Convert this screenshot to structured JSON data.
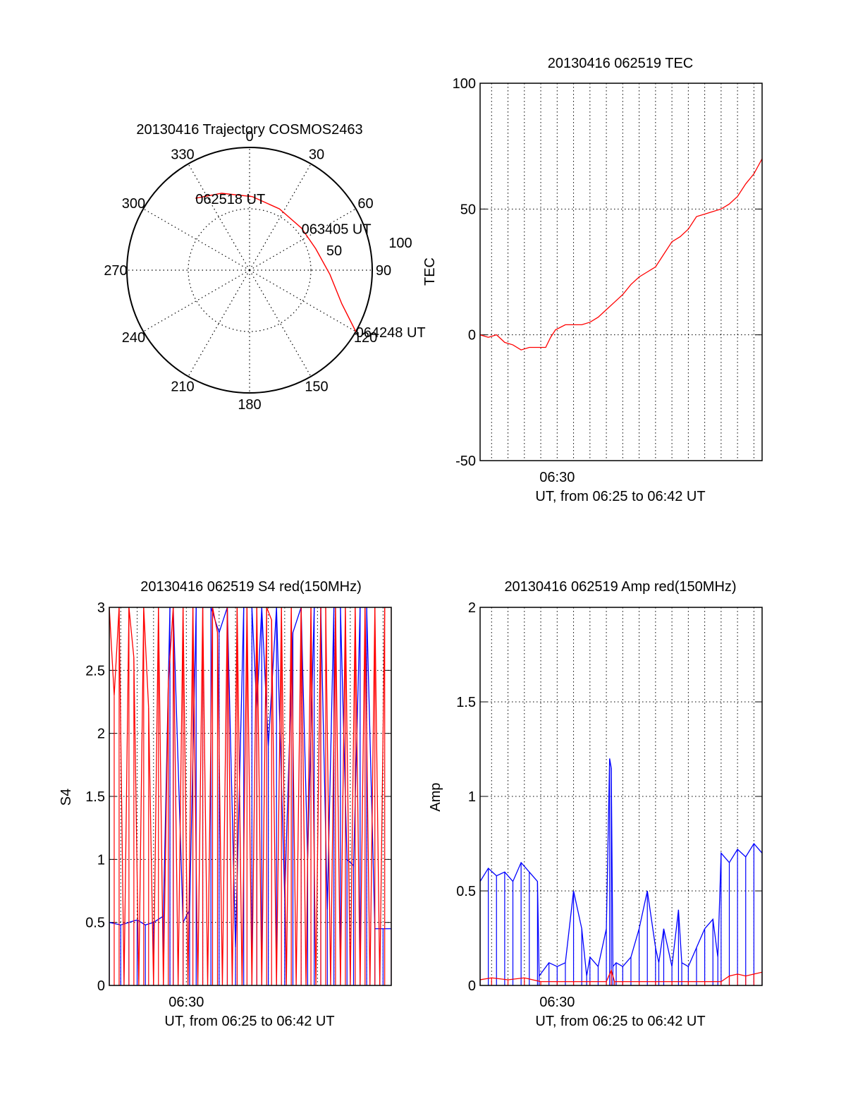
{
  "colors": {
    "primary": "#ff0000",
    "secondary": "#0000ff",
    "grid": "#000000"
  },
  "chart_data": [
    {
      "type": "polar",
      "title": "20130416 Trajectory COSMOS2463",
      "angle_labels": [
        "0",
        "30",
        "60",
        "90",
        "120",
        "150",
        "180",
        "210",
        "240",
        "270",
        "300",
        "330"
      ],
      "radial_labels": [
        "50",
        "100"
      ],
      "radial_max": 90,
      "trajectory": [
        {
          "az": 323,
          "el": 24
        },
        {
          "az": 340,
          "el": 30
        },
        {
          "az": 2,
          "el": 36
        },
        {
          "az": 26,
          "el": 40
        },
        {
          "az": 51,
          "el": 41
        },
        {
          "az": 72,
          "el": 39
        },
        {
          "az": 93,
          "el": 31
        },
        {
          "az": 110,
          "el": 18
        },
        {
          "az": 120,
          "el": 0
        }
      ],
      "annotations": [
        {
          "text": "062518 UT",
          "az": 323,
          "el": 24
        },
        {
          "text": "063405 UT",
          "az": 51,
          "el": 41
        },
        {
          "text": "064248 UT",
          "az": 120,
          "el": 0
        }
      ]
    },
    {
      "type": "line",
      "title": "20130416 062519 TEC",
      "ylabel": "TEC",
      "xlabel": "UT, from 06:25 to 06:42 UT",
      "xtick_labels": [
        "06:30"
      ],
      "yticks": [
        -50,
        0,
        50,
        100
      ],
      "ylim": [
        -50,
        100
      ],
      "xlim_min": [
        25.3,
        42.5
      ],
      "grid": true,
      "series": [
        {
          "color": "#ff0000",
          "x": [
            25.3,
            25.8,
            26.3,
            26.8,
            27.3,
            27.8,
            28.3,
            28.8,
            29.3,
            29.6,
            29.9,
            30.5,
            31.0,
            31.5,
            32.0,
            32.5,
            33.0,
            33.5,
            34.0,
            34.5,
            35.0,
            35.5,
            36.0,
            36.5,
            37.0,
            37.5,
            38.0,
            38.5,
            39.0,
            39.5,
            40.0,
            40.5,
            41.0,
            41.5,
            42.0,
            42.5
          ],
          "y": [
            0,
            -1,
            0,
            -3,
            -4,
            -6,
            -5,
            -5,
            -5,
            -1,
            2,
            4,
            4,
            4,
            5,
            7,
            10,
            13,
            16,
            20,
            23,
            25,
            27,
            32,
            37,
            39,
            42,
            47,
            48,
            49,
            50,
            52,
            55,
            60,
            64,
            70
          ]
        }
      ]
    },
    {
      "type": "line",
      "title": "20130416 062519 S4 red(150MHz)",
      "ylabel": "S4",
      "xlabel": "UT, from 06:25 to 06:42 UT",
      "xtick_labels": [
        "06:30"
      ],
      "yticks": [
        0,
        0.5,
        1,
        1.5,
        2,
        2.5,
        3
      ],
      "ytick_labels": [
        "0",
        "0.5",
        "1",
        "1.5",
        "2",
        "2.5",
        "3"
      ],
      "ylim": [
        0,
        3
      ],
      "xlim_min": [
        25.3,
        42.5
      ],
      "grid": true,
      "series": [
        {
          "color": "#0000ff",
          "x": [
            25.3,
            26.0,
            26.5,
            27.0,
            27.5,
            28.0,
            28.6,
            29.0,
            29.2,
            29.8,
            30.2,
            30.6,
            31.0,
            31.5,
            32.0,
            32.5,
            33.0,
            33.5,
            34.0,
            34.3,
            34.6,
            35.0,
            35.5,
            36.0,
            36.5,
            37.0,
            37.4,
            37.8,
            38.2,
            38.6,
            39.0,
            39.4,
            39.8,
            40.2,
            40.6,
            41.0,
            41.5,
            42.0,
            42.5
          ],
          "y": [
            0.5,
            0.48,
            0.5,
            0.52,
            0.48,
            0.5,
            0.55,
            3,
            3,
            0.5,
            0.6,
            3,
            3,
            3,
            2.8,
            3,
            0.3,
            3,
            3,
            2.2,
            3,
            1.9,
            3,
            0.7,
            2.8,
            3,
            1.0,
            3,
            3,
            0.6,
            3,
            3,
            1.0,
            0.95,
            3,
            3,
            0.45,
            0.45,
            0.45
          ]
        },
        {
          "color": "#ff0000",
          "x": [
            25.3,
            25.6,
            25.9,
            26.2,
            26.5,
            26.8,
            27.1,
            27.4,
            27.7,
            28.0,
            28.3,
            28.6,
            28.9,
            29.2,
            29.5,
            29.8,
            30.1,
            30.4,
            30.7,
            31.0,
            31.3,
            31.6,
            31.9,
            32.2,
            32.5,
            32.8,
            33.1,
            33.4,
            33.7,
            34.0,
            34.3,
            34.6,
            34.9,
            35.2,
            35.5,
            35.8,
            36.1,
            36.4,
            36.7,
            37.0,
            37.3,
            37.6,
            37.9,
            38.2,
            38.5,
            38.8,
            39.1,
            39.4,
            39.7,
            40.0,
            40.3,
            40.6,
            40.9,
            41.2,
            41.5,
            41.8,
            42.1,
            42.5
          ],
          "y": [
            3,
            2.3,
            3,
            0,
            3,
            2.6,
            0,
            3,
            2.2,
            0,
            3,
            0,
            2.4,
            3,
            0,
            3,
            0,
            3,
            0,
            3,
            0,
            3,
            2.8,
            0,
            3,
            0,
            3,
            0,
            3,
            0,
            3,
            0,
            3,
            2.9,
            0,
            3,
            0,
            3,
            0,
            3,
            0,
            3,
            0,
            3,
            3,
            0,
            3,
            0,
            3,
            0,
            3,
            0,
            3,
            0,
            3,
            0,
            3,
            3
          ]
        }
      ]
    },
    {
      "type": "line",
      "title": "20130416 062519 Amp red(150MHz)",
      "ylabel": "Amp",
      "xlabel": "UT, from 06:25 to 06:42 UT",
      "xtick_labels": [
        "06:30"
      ],
      "yticks": [
        0,
        0.5,
        1,
        1.5,
        2
      ],
      "ytick_labels": [
        "0",
        "0.5",
        "1",
        "1.5",
        "2"
      ],
      "ylim": [
        0,
        2
      ],
      "xlim_min": [
        25.3,
        42.5
      ],
      "grid": true,
      "series": [
        {
          "color": "#0000ff",
          "x": [
            25.3,
            25.8,
            26.3,
            26.8,
            27.3,
            27.8,
            28.3,
            28.8,
            28.9,
            29.5,
            30.0,
            30.5,
            31.0,
            31.5,
            31.8,
            32.0,
            32.5,
            33.0,
            33.2,
            33.3,
            33.4,
            33.6,
            34.0,
            34.5,
            35.0,
            35.5,
            36.0,
            36.2,
            36.5,
            37.0,
            37.4,
            37.6,
            38.0,
            38.5,
            39.0,
            39.5,
            39.8,
            40.0,
            40.5,
            41.0,
            41.5,
            42.0,
            42.5
          ],
          "y": [
            0.55,
            0.62,
            0.58,
            0.6,
            0.55,
            0.65,
            0.6,
            0.55,
            0.05,
            0.12,
            0.1,
            0.12,
            0.5,
            0.3,
            0.05,
            0.15,
            0.1,
            0.3,
            1.2,
            1.15,
            0.1,
            0.12,
            0.1,
            0.15,
            0.3,
            0.5,
            0.2,
            0.12,
            0.3,
            0.1,
            0.4,
            0.12,
            0.1,
            0.2,
            0.3,
            0.35,
            0.15,
            0.7,
            0.65,
            0.72,
            0.68,
            0.75,
            0.7
          ]
        },
        {
          "color": "#ff0000",
          "x": [
            25.3,
            26.0,
            27.0,
            28.0,
            29.0,
            30.0,
            31.0,
            32.0,
            33.0,
            33.3,
            33.5,
            34.0,
            35.0,
            36.0,
            37.0,
            38.0,
            39.0,
            40.0,
            40.5,
            41.0,
            41.5,
            42.0,
            42.5
          ],
          "y": [
            0.03,
            0.04,
            0.03,
            0.04,
            0.02,
            0.02,
            0.02,
            0.02,
            0.02,
            0.08,
            0.02,
            0.02,
            0.02,
            0.02,
            0.02,
            0.02,
            0.02,
            0.02,
            0.05,
            0.06,
            0.05,
            0.06,
            0.07
          ]
        }
      ]
    }
  ]
}
